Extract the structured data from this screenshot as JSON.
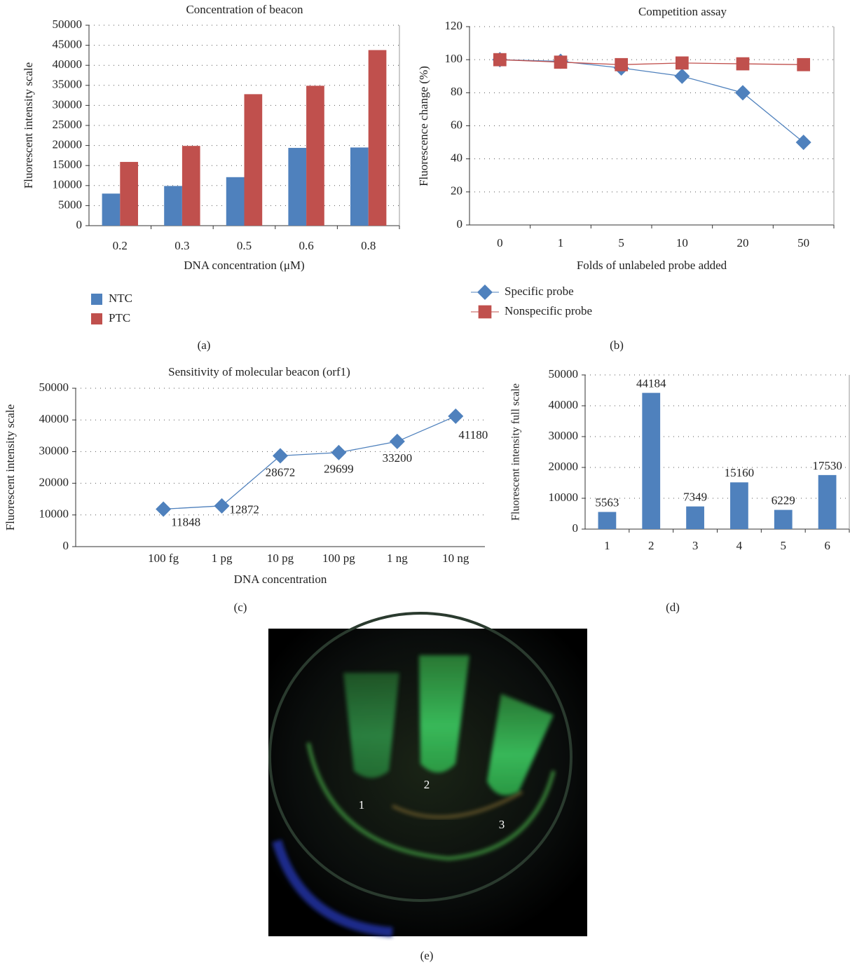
{
  "chart_data": [
    {
      "type": "bar",
      "title": "Concentration of beacon",
      "ylabel": "Fluorescent intensity scale",
      "xlabel": "DNA concentration (μM)",
      "caption": "(a)",
      "categories": [
        "0.2",
        "0.3",
        "0.5",
        "0.6",
        "0.8"
      ],
      "series": [
        {
          "name": "NTC",
          "color": "#4f81bd",
          "values": [
            8000,
            9900,
            12100,
            19400,
            19500
          ]
        },
        {
          "name": "PTC",
          "color": "#c0504d",
          "values": [
            15900,
            19900,
            32800,
            34900,
            43800
          ]
        }
      ],
      "ylim": [
        0,
        50000
      ],
      "yticks": [
        0,
        5000,
        10000,
        15000,
        20000,
        25000,
        30000,
        35000,
        40000,
        45000,
        50000
      ],
      "grid": true,
      "legend": "bottom-left"
    },
    {
      "type": "line",
      "title": "Competition assay",
      "ylabel": "Fluorescence change (%)",
      "xlabel": "Folds of unlabeled probe added",
      "caption": "(b)",
      "categories": [
        "0",
        "1",
        "5",
        "10",
        "20",
        "50"
      ],
      "series": [
        {
          "name": "Specific probe",
          "color": "#4f81bd",
          "marker": "diamond",
          "values": [
            100,
            99,
            95,
            90,
            80,
            50
          ]
        },
        {
          "name": "Nonspecific probe",
          "color": "#c0504d",
          "marker": "square",
          "values": [
            100,
            98.5,
            97,
            98,
            97.5,
            97
          ]
        }
      ],
      "ylim": [
        0,
        120
      ],
      "yticks": [
        0,
        20,
        40,
        60,
        80,
        100,
        120
      ],
      "grid": true,
      "legend": "bottom-left"
    },
    {
      "type": "line",
      "title": "Sensitivity of molecular beacon (orf1)",
      "ylabel": "Fluorescent intensity scale",
      "xlabel": "DNA concentration",
      "caption": "(c)",
      "categories": [
        null,
        "100 fg",
        "1 pg",
        "10 pg",
        "100 pg",
        "1 ng",
        "10 ng"
      ],
      "series": [
        {
          "color": "#4f81bd",
          "marker": "diamond",
          "values": [
            null,
            11848,
            12872,
            28672,
            29699,
            33200,
            41180
          ]
        }
      ],
      "ylim": [
        0,
        50000
      ],
      "yticks": [
        0,
        10000,
        20000,
        30000,
        40000,
        50000
      ],
      "grid": true,
      "data_labels": true
    },
    {
      "type": "bar",
      "ylabel": "Fluorescent intensity full scale",
      "caption": "(d)",
      "categories": [
        "1",
        "2",
        "3",
        "4",
        "5",
        "6"
      ],
      "values": [
        5563,
        44184,
        7349,
        15160,
        6229,
        17530
      ],
      "color": "#4f81bd",
      "ylim": [
        0,
        50000
      ],
      "yticks": [
        0,
        10000,
        20000,
        30000,
        40000,
        50000
      ],
      "grid": true,
      "data_labels": true
    }
  ],
  "photo": {
    "labels": [
      "1",
      "2",
      "3"
    ],
    "caption": "(e)"
  }
}
